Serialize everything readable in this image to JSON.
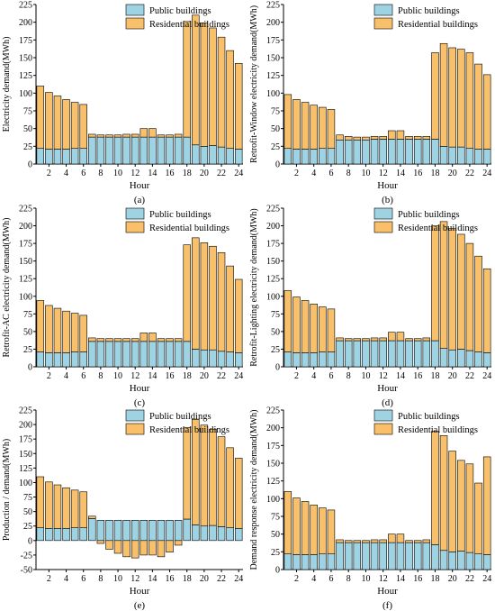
{
  "colors": {
    "public": "#9dd3e2",
    "residential": "#f8c06a",
    "stroke": "#000000"
  },
  "legend": {
    "public_label": "Public buildings",
    "residential_label": "Residential buildings"
  },
  "xlabel": "Hour",
  "chart_data": [
    {
      "type": "bar",
      "stacked": true,
      "panel_label": "(a)",
      "ylabel": "Electricity demand(MWh)",
      "ylim": [
        0,
        225
      ],
      "yticks": [
        0,
        25,
        50,
        75,
        100,
        125,
        150,
        175,
        200,
        225
      ],
      "categories": [
        1,
        2,
        3,
        4,
        5,
        6,
        7,
        8,
        9,
        10,
        11,
        12,
        13,
        14,
        15,
        16,
        17,
        18,
        19,
        20,
        21,
        22,
        23,
        24
      ],
      "xtick_labels": [
        "2",
        "4",
        "6",
        "8",
        "10",
        "12",
        "14",
        "16",
        "18",
        "20",
        "22",
        "24"
      ],
      "series": [
        {
          "name": "Public buildings",
          "values": [
            22,
            21,
            21,
            21,
            22,
            22,
            38,
            38,
            38,
            38,
            38,
            38,
            38,
            38,
            38,
            38,
            38,
            38,
            27,
            25,
            26,
            24,
            22,
            21
          ]
        },
        {
          "name": "Residential buildings",
          "values": [
            88,
            80,
            75,
            70,
            65,
            62,
            4,
            3,
            3,
            3,
            4,
            4,
            12,
            12,
            3,
            3,
            4,
            163,
            183,
            174,
            166,
            155,
            138,
            121
          ]
        }
      ]
    },
    {
      "type": "bar",
      "stacked": true,
      "panel_label": "(b)",
      "ylabel": "Retrofit-Window electricity demand(MWh)",
      "ylim": [
        0,
        225
      ],
      "yticks": [
        0,
        25,
        50,
        75,
        100,
        125,
        150,
        175,
        200,
        225
      ],
      "categories": [
        1,
        2,
        3,
        4,
        5,
        6,
        7,
        8,
        9,
        10,
        11,
        12,
        13,
        14,
        15,
        16,
        17,
        18,
        19,
        20,
        21,
        22,
        23,
        24
      ],
      "xtick_labels": [
        "2",
        "4",
        "6",
        "8",
        "10",
        "12",
        "14",
        "16",
        "18",
        "20",
        "22",
        "24"
      ],
      "series": [
        {
          "name": "Public buildings",
          "values": [
            22,
            21,
            21,
            21,
            22,
            22,
            34,
            34,
            34,
            34,
            35,
            35,
            35,
            35,
            35,
            35,
            35,
            35,
            25,
            24,
            24,
            22,
            21,
            21
          ]
        },
        {
          "name": "Residential buildings",
          "values": [
            76,
            70,
            66,
            62,
            58,
            55,
            7,
            5,
            4,
            4,
            4,
            4,
            12,
            12,
            4,
            4,
            4,
            122,
            145,
            140,
            138,
            135,
            120,
            105
          ]
        }
      ]
    },
    {
      "type": "bar",
      "stacked": true,
      "panel_label": "(c)",
      "ylabel": "Retrofit-AC electricity demand(MWh)",
      "ylim": [
        0,
        225
      ],
      "yticks": [
        0,
        25,
        50,
        75,
        100,
        125,
        150,
        175,
        200,
        225
      ],
      "categories": [
        1,
        2,
        3,
        4,
        5,
        6,
        7,
        8,
        9,
        10,
        11,
        12,
        13,
        14,
        15,
        16,
        17,
        18,
        19,
        20,
        21,
        22,
        23,
        24
      ],
      "xtick_labels": [
        "2",
        "4",
        "6",
        "8",
        "10",
        "12",
        "14",
        "16",
        "18",
        "20",
        "22",
        "24"
      ],
      "series": [
        {
          "name": "Public buildings",
          "values": [
            21,
            20,
            20,
            20,
            21,
            21,
            36,
            36,
            36,
            36,
            36,
            36,
            36,
            36,
            36,
            36,
            36,
            36,
            25,
            24,
            24,
            22,
            21,
            20
          ]
        },
        {
          "name": "Residential buildings",
          "values": [
            73,
            67,
            63,
            59,
            55,
            52,
            5,
            4,
            4,
            4,
            4,
            4,
            12,
            12,
            4,
            4,
            4,
            137,
            158,
            152,
            147,
            140,
            122,
            104
          ]
        }
      ]
    },
    {
      "type": "bar",
      "stacked": true,
      "panel_label": "(d)",
      "ylabel": "Retrofit-Lighting electricity demand(MWh)",
      "ylim": [
        0,
        225
      ],
      "yticks": [
        0,
        25,
        50,
        75,
        100,
        125,
        150,
        175,
        200,
        225
      ],
      "categories": [
        1,
        2,
        3,
        4,
        5,
        6,
        7,
        8,
        9,
        10,
        11,
        12,
        13,
        14,
        15,
        16,
        17,
        18,
        19,
        20,
        21,
        22,
        23,
        24
      ],
      "xtick_labels": [
        "2",
        "4",
        "6",
        "8",
        "10",
        "12",
        "14",
        "16",
        "18",
        "20",
        "22",
        "24"
      ],
      "series": [
        {
          "name": "Public buildings",
          "values": [
            21,
            20,
            20,
            20,
            21,
            21,
            37,
            37,
            37,
            37,
            37,
            37,
            37,
            37,
            37,
            37,
            37,
            37,
            26,
            24,
            25,
            23,
            21,
            20
          ]
        },
        {
          "name": "Residential buildings",
          "values": [
            87,
            79,
            74,
            69,
            64,
            61,
            4,
            3,
            3,
            3,
            4,
            4,
            12,
            12,
            3,
            3,
            4,
            163,
            180,
            172,
            163,
            152,
            136,
            119
          ]
        }
      ]
    },
    {
      "type": "bar",
      "stacked": true,
      "panel_label": "(e)",
      "ylabel": "Production / demand(MWh)",
      "ylim": [
        -50,
        225
      ],
      "yticks": [
        -50,
        -25,
        0,
        25,
        50,
        75,
        100,
        125,
        150,
        175,
        200,
        225
      ],
      "categories": [
        1,
        2,
        3,
        4,
        5,
        6,
        7,
        8,
        9,
        10,
        11,
        12,
        13,
        14,
        15,
        16,
        17,
        18,
        19,
        20,
        21,
        22,
        23,
        24
      ],
      "xtick_labels": [
        "2",
        "4",
        "6",
        "8",
        "10",
        "12",
        "14",
        "16",
        "18",
        "20",
        "22",
        "24"
      ],
      "series": [
        {
          "name": "Public buildings",
          "values": [
            22,
            21,
            21,
            21,
            22,
            22,
            38,
            35,
            35,
            35,
            35,
            35,
            35,
            35,
            35,
            35,
            35,
            37,
            27,
            25,
            26,
            24,
            22,
            21
          ]
        },
        {
          "name": "Residential buildings",
          "values": [
            88,
            80,
            75,
            70,
            65,
            62,
            4,
            -5,
            -15,
            -22,
            -28,
            -30,
            -25,
            -25,
            -28,
            -20,
            -8,
            158,
            182,
            174,
            166,
            155,
            138,
            121
          ]
        }
      ]
    },
    {
      "type": "bar",
      "stacked": true,
      "panel_label": "(f)",
      "ylabel": "Demand response electricity demand(MWh)",
      "ylim": [
        0,
        225
      ],
      "yticks": [
        0,
        25,
        50,
        75,
        100,
        125,
        150,
        175,
        200,
        225
      ],
      "categories": [
        1,
        2,
        3,
        4,
        5,
        6,
        7,
        8,
        9,
        10,
        11,
        12,
        13,
        14,
        15,
        16,
        17,
        18,
        19,
        20,
        21,
        22,
        23,
        24
      ],
      "xtick_labels": [
        "2",
        "4",
        "6",
        "8",
        "10",
        "12",
        "14",
        "16",
        "18",
        "20",
        "22",
        "24"
      ],
      "series": [
        {
          "name": "Public buildings",
          "values": [
            22,
            21,
            21,
            21,
            22,
            22,
            38,
            38,
            38,
            38,
            38,
            38,
            38,
            38,
            38,
            38,
            38,
            35,
            27,
            25,
            26,
            24,
            22,
            21
          ]
        },
        {
          "name": "Residential buildings",
          "values": [
            88,
            80,
            75,
            70,
            65,
            62,
            4,
            3,
            3,
            3,
            4,
            4,
            12,
            12,
            3,
            3,
            4,
            160,
            162,
            142,
            128,
            125,
            100,
            138
          ]
        }
      ]
    }
  ]
}
